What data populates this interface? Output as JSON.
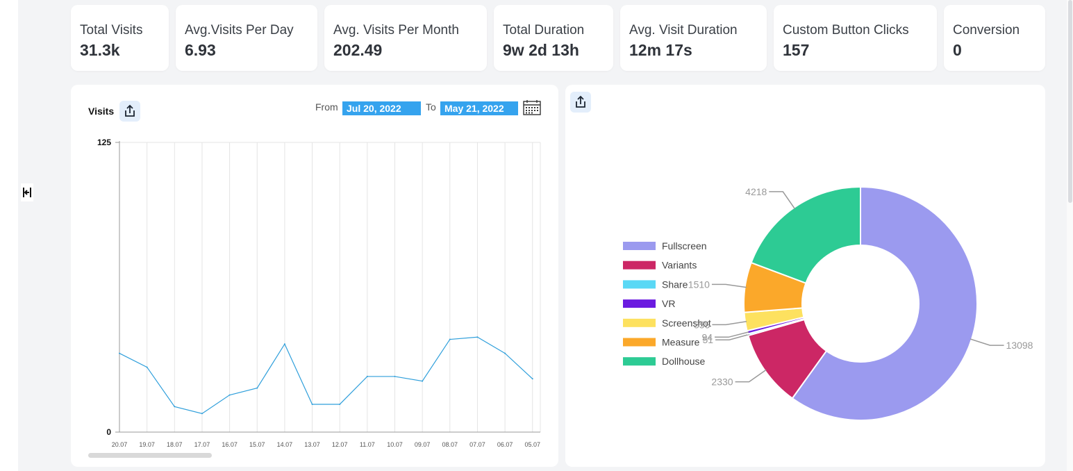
{
  "stats": [
    {
      "label": "Total Visits",
      "value": "31.3k"
    },
    {
      "label": "Avg.Visits Per Day",
      "value": "6.93"
    },
    {
      "label": "Avg. Visits Per Month",
      "value": "202.49"
    },
    {
      "label": "Total Duration",
      "value": "9w 2d 13h"
    },
    {
      "label": "Avg. Visit Duration",
      "value": "12m 17s"
    },
    {
      "label": "Custom Button Clicks",
      "value": "157"
    },
    {
      "label": "Conversion",
      "value": "0"
    }
  ],
  "visits_panel": {
    "title": "Visits",
    "from_label": "From",
    "from_date": "Jul 20, 2022",
    "to_label": "To",
    "to_date": "May 21, 2022",
    "export_icon": "share-icon",
    "calendar_icon": "calendar-icon"
  },
  "chart_data": [
    {
      "type": "line",
      "title": "Visits",
      "categories": [
        "20.07",
        "19.07",
        "18.07",
        "17.07",
        "16.07",
        "15.07",
        "14.07",
        "13.07",
        "12.07",
        "11.07",
        "10.07",
        "09.07",
        "08.07",
        "07.07",
        "06.07",
        "05.07"
      ],
      "values": [
        34,
        28,
        11,
        8,
        16,
        19,
        38,
        12,
        12,
        24,
        24,
        22,
        40,
        41,
        34,
        23
      ],
      "ylim": [
        0,
        125
      ],
      "yticks": [
        "0",
        "125"
      ],
      "grid": "vertical",
      "color": "#2f9fdb"
    },
    {
      "type": "pie",
      "style": "donut",
      "legend_position": "left",
      "series": [
        {
          "name": "Fullscreen",
          "value": 13098,
          "color": "#9b9aef"
        },
        {
          "name": "Variants",
          "value": 2330,
          "color": "#cc2765"
        },
        {
          "name": "Share",
          "value": 51,
          "color": "#5ad8f5"
        },
        {
          "name": "VR",
          "value": 94,
          "color": "#6b1be0"
        },
        {
          "name": "Screenshot",
          "value": 555,
          "color": "#fde15f"
        },
        {
          "name": "Measure",
          "value": 1510,
          "color": "#fba82a"
        },
        {
          "name": "Dollhouse",
          "value": 4218,
          "color": "#2dcb94"
        }
      ]
    }
  ],
  "colors": {
    "accent": "#35a3ee",
    "background": "#f3f4f6"
  }
}
